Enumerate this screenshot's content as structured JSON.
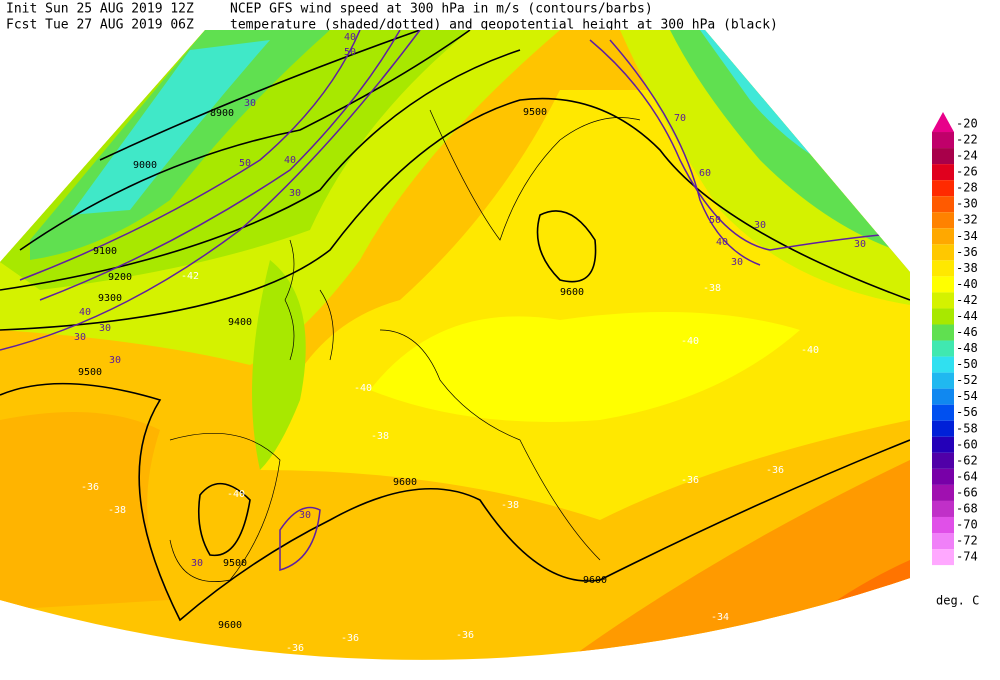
{
  "header": {
    "init": "Init  Sun 25 AUG 2019 12Z",
    "forecast": "Fcst Tue 27 AUG 2019 06Z",
    "line1": "NCEP GFS wind speed at 300 hPa in m/s (contours/barbs)",
    "line2": "temperature (shaded/dotted) and geopotential height at 300 hPa (black)"
  },
  "colorbar": {
    "unit": "deg. C",
    "values": [
      -20,
      -22,
      -24,
      -26,
      -28,
      -30,
      -32,
      -34,
      -36,
      -38,
      -40,
      -42,
      -44,
      -46,
      -48,
      -50,
      -52,
      -54,
      -56,
      -58,
      -60,
      -62,
      -64,
      -66,
      -68,
      -70,
      -72,
      -74
    ],
    "colors": [
      "#e8008a",
      "#c0006a",
      "#a8004a",
      "#e0001e",
      "#ff2a00",
      "#ff5a00",
      "#ff8200",
      "#ffa800",
      "#ffc800",
      "#ffe800",
      "#ffff00",
      "#d4f200",
      "#a8e800",
      "#60e050",
      "#40e8b0",
      "#30e0f0",
      "#20b8f0",
      "#1088f0",
      "#0050f0",
      "#0020d8",
      "#2400b8",
      "#5000a8",
      "#7800a8",
      "#a010b0",
      "#c030c8",
      "#e050e8",
      "#f080f8",
      "#ffa8ff"
    ]
  },
  "map": {
    "height_labels": [
      9000,
      8900,
      9100,
      9200,
      9300,
      9400,
      9500,
      9500,
      9600,
      9600,
      9500,
      9600,
      9600
    ],
    "temperature_labels": [
      -36,
      -38,
      -40,
      -38,
      -40,
      -40,
      -38,
      -36,
      -36,
      -34,
      -36,
      -36,
      -36,
      -42,
      -38,
      -40
    ],
    "wind_labels": [
      30,
      40,
      50,
      40,
      30,
      50,
      40,
      30,
      30,
      30,
      70,
      60,
      50,
      40,
      30,
      30,
      30,
      30,
      30
    ]
  }
}
